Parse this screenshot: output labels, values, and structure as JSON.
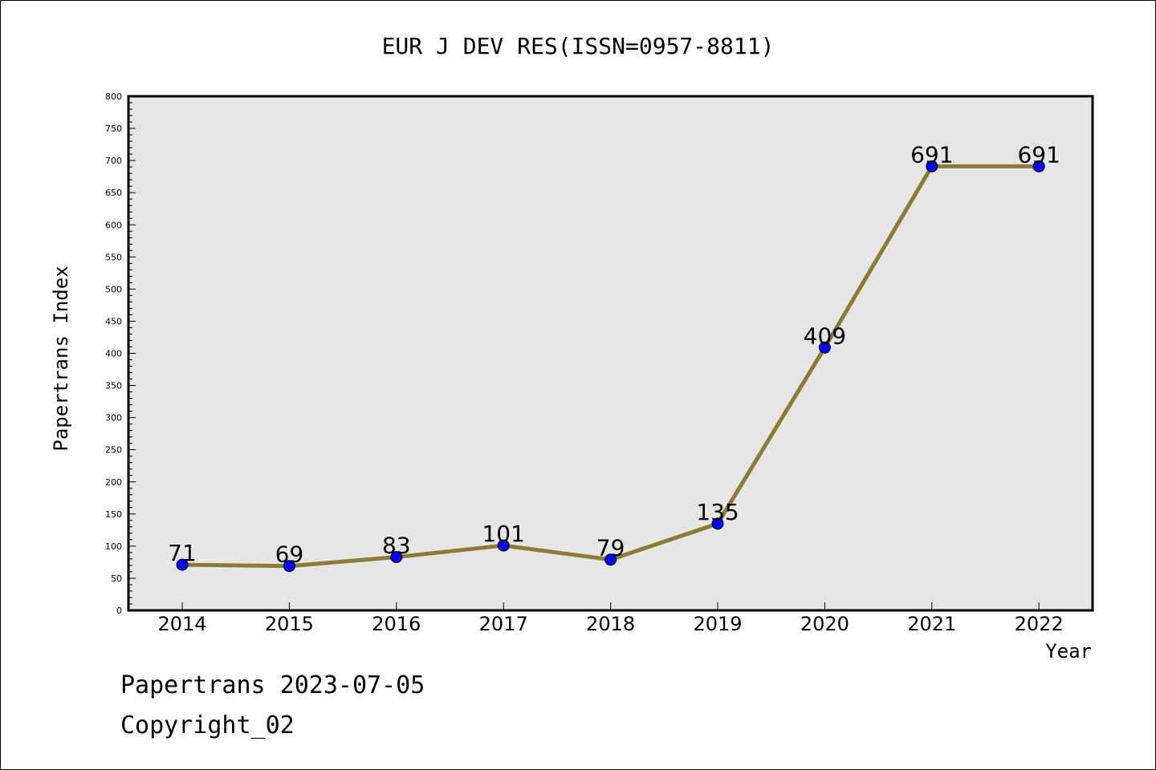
{
  "chart_data": {
    "type": "line",
    "title": "EUR J DEV RES(ISSN=0957-8811)",
    "xlabel": "Year",
    "ylabel": "Papertrans Index",
    "categories": [
      "2014",
      "2015",
      "2016",
      "2017",
      "2018",
      "2019",
      "2020",
      "2021",
      "2022"
    ],
    "series": [
      {
        "values": [
          71,
          69,
          83,
          101,
          79,
          135,
          409,
          691,
          691
        ]
      }
    ],
    "data_labels": [
      "71",
      "69",
      "83",
      "101",
      "79",
      "135",
      "409",
      "691",
      "691"
    ],
    "ylim": [
      0,
      800
    ],
    "yticks": [
      0,
      50,
      100,
      150,
      200,
      250,
      300,
      350,
      400,
      450,
      500,
      550,
      600,
      650,
      700,
      750,
      800
    ],
    "ytick_labels": [
      "0",
      "50",
      "100",
      "150",
      "200",
      "250",
      "300",
      "350",
      "400",
      "450",
      "500",
      "550",
      "600",
      "650",
      "700",
      "750",
      "800"
    ],
    "grid": false,
    "line_color": "#8B7B35",
    "marker_color": "#0000FF",
    "plot_background": "#E6E6E6"
  },
  "footer": {
    "line1": "Papertrans 2023-07-05",
    "line2": "Copyright_02"
  }
}
